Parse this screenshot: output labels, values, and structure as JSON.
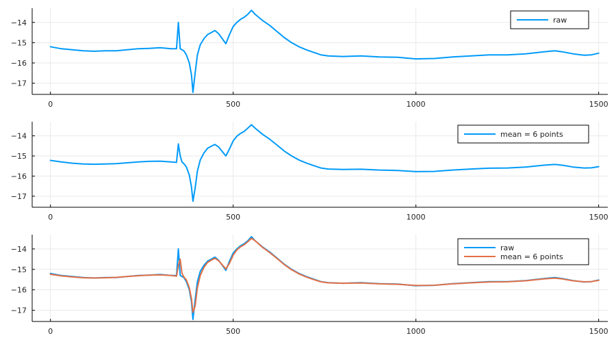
{
  "chart_data": [
    {
      "type": "line",
      "xlim": [
        -50,
        1525
      ],
      "ylim": [
        -17.55,
        -13.3
      ],
      "x_ticks": [
        0,
        500,
        1000,
        1500
      ],
      "y_ticks": [
        -17,
        -16,
        -15,
        -14
      ],
      "x_tick_labels": [
        "0",
        "500",
        "1000",
        "1500"
      ],
      "y_tick_labels": [
        "-17",
        "-16",
        "-15",
        "-14"
      ],
      "grid": true,
      "legend_position": "top-right",
      "series": [
        {
          "name": "raw",
          "color": "#009af9",
          "line_width": 2,
          "x": [
            0,
            30,
            60,
            90,
            120,
            150,
            180,
            210,
            240,
            270,
            300,
            330,
            345,
            350,
            355,
            360,
            365,
            372,
            380,
            386,
            390,
            396,
            402,
            410,
            420,
            430,
            440,
            450,
            460,
            470,
            480,
            490,
            500,
            510,
            520,
            530,
            540,
            550,
            560,
            580,
            600,
            620,
            640,
            660,
            680,
            700,
            720,
            740,
            760,
            800,
            850,
            900,
            950,
            1000,
            1050,
            1100,
            1150,
            1200,
            1250,
            1300,
            1350,
            1380,
            1400,
            1430,
            1460,
            1480,
            1500
          ],
          "y": [
            -15.2,
            -15.3,
            -15.35,
            -15.4,
            -15.42,
            -15.4,
            -15.4,
            -15.35,
            -15.3,
            -15.28,
            -15.25,
            -15.3,
            -15.3,
            -14.0,
            -15.3,
            -15.35,
            -15.4,
            -15.6,
            -16.0,
            -16.6,
            -17.45,
            -16.5,
            -15.6,
            -15.1,
            -14.8,
            -14.6,
            -14.5,
            -14.4,
            -14.55,
            -14.8,
            -15.05,
            -14.6,
            -14.2,
            -14.0,
            -13.85,
            -13.75,
            -13.6,
            -13.4,
            -13.6,
            -13.9,
            -14.15,
            -14.45,
            -14.75,
            -15.0,
            -15.2,
            -15.35,
            -15.48,
            -15.6,
            -15.65,
            -15.68,
            -15.65,
            -15.7,
            -15.72,
            -15.8,
            -15.78,
            -15.7,
            -15.65,
            -15.6,
            -15.6,
            -15.55,
            -15.45,
            -15.4,
            -15.45,
            -15.55,
            -15.62,
            -15.6,
            -15.52
          ]
        }
      ]
    },
    {
      "type": "line",
      "xlim": [
        -50,
        1525
      ],
      "ylim": [
        -17.55,
        -13.3
      ],
      "x_ticks": [
        0,
        500,
        1000,
        1500
      ],
      "y_ticks": [
        -17,
        -16,
        -15,
        -14
      ],
      "x_tick_labels": [
        "0",
        "500",
        "1000",
        "1500"
      ],
      "y_tick_labels": [
        "-17",
        "-16",
        "-15",
        "-14"
      ],
      "grid": true,
      "legend_position": "top-right",
      "series": [
        {
          "name": "mean = 6 points",
          "color": "#009af9",
          "line_width": 2,
          "x": [
            0,
            30,
            60,
            90,
            120,
            150,
            180,
            210,
            240,
            270,
            300,
            330,
            345,
            350,
            355,
            360,
            365,
            372,
            380,
            386,
            390,
            396,
            402,
            410,
            420,
            430,
            440,
            450,
            460,
            470,
            480,
            490,
            500,
            510,
            520,
            530,
            540,
            550,
            560,
            580,
            600,
            620,
            640,
            660,
            680,
            700,
            720,
            740,
            760,
            800,
            850,
            900,
            950,
            1000,
            1050,
            1100,
            1150,
            1200,
            1250,
            1300,
            1350,
            1380,
            1400,
            1430,
            1460,
            1480,
            1500
          ],
          "y": [
            -15.22,
            -15.3,
            -15.36,
            -15.4,
            -15.41,
            -15.4,
            -15.38,
            -15.34,
            -15.3,
            -15.27,
            -15.26,
            -15.3,
            -15.32,
            -14.4,
            -15.0,
            -15.3,
            -15.38,
            -15.55,
            -15.95,
            -16.55,
            -17.25,
            -16.6,
            -15.75,
            -15.2,
            -14.85,
            -14.62,
            -14.52,
            -14.43,
            -14.55,
            -14.78,
            -15.0,
            -14.65,
            -14.25,
            -14.02,
            -13.88,
            -13.78,
            -13.62,
            -13.45,
            -13.62,
            -13.92,
            -14.17,
            -14.46,
            -14.76,
            -15.0,
            -15.2,
            -15.35,
            -15.48,
            -15.6,
            -15.65,
            -15.67,
            -15.66,
            -15.7,
            -15.72,
            -15.78,
            -15.77,
            -15.7,
            -15.65,
            -15.61,
            -15.6,
            -15.55,
            -15.46,
            -15.42,
            -15.46,
            -15.55,
            -15.6,
            -15.59,
            -15.53
          ]
        }
      ]
    },
    {
      "type": "line",
      "xlim": [
        -50,
        1525
      ],
      "ylim": [
        -17.55,
        -13.3
      ],
      "x_ticks": [
        0,
        500,
        1000,
        1500
      ],
      "y_ticks": [
        -17,
        -16,
        -15,
        -14
      ],
      "x_tick_labels": [
        "0",
        "500",
        "1000",
        "1500"
      ],
      "y_tick_labels": [
        "-17",
        "-16",
        "-15",
        "-14"
      ],
      "grid": true,
      "legend_position": "top-right",
      "series": [
        {
          "name": "raw",
          "color": "#009af9",
          "line_width": 2,
          "x": [
            0,
            30,
            60,
            90,
            120,
            150,
            180,
            210,
            240,
            270,
            300,
            330,
            345,
            350,
            355,
            360,
            365,
            372,
            380,
            386,
            390,
            396,
            402,
            410,
            420,
            430,
            440,
            450,
            460,
            470,
            480,
            490,
            500,
            510,
            520,
            530,
            540,
            550,
            560,
            580,
            600,
            620,
            640,
            660,
            680,
            700,
            720,
            740,
            760,
            800,
            850,
            900,
            950,
            1000,
            1050,
            1100,
            1150,
            1200,
            1250,
            1300,
            1350,
            1380,
            1400,
            1430,
            1460,
            1480,
            1500
          ],
          "y": [
            -15.2,
            -15.3,
            -15.35,
            -15.4,
            -15.42,
            -15.4,
            -15.4,
            -15.35,
            -15.3,
            -15.28,
            -15.25,
            -15.3,
            -15.3,
            -14.0,
            -15.3,
            -15.35,
            -15.4,
            -15.6,
            -16.0,
            -16.6,
            -17.45,
            -16.5,
            -15.6,
            -15.1,
            -14.8,
            -14.6,
            -14.5,
            -14.4,
            -14.55,
            -14.8,
            -15.05,
            -14.6,
            -14.2,
            -14.0,
            -13.85,
            -13.75,
            -13.6,
            -13.4,
            -13.6,
            -13.9,
            -14.15,
            -14.45,
            -14.75,
            -15.0,
            -15.2,
            -15.35,
            -15.48,
            -15.6,
            -15.65,
            -15.68,
            -15.65,
            -15.7,
            -15.72,
            -15.8,
            -15.78,
            -15.7,
            -15.65,
            -15.6,
            -15.6,
            -15.55,
            -15.45,
            -15.4,
            -15.45,
            -15.55,
            -15.62,
            -15.6,
            -15.52
          ]
        },
        {
          "name": "mean = 6 points",
          "color": "#e26f46",
          "line_width": 2,
          "x": [
            0,
            30,
            60,
            90,
            120,
            150,
            180,
            210,
            240,
            270,
            300,
            330,
            345,
            350,
            355,
            360,
            365,
            372,
            380,
            386,
            390,
            396,
            402,
            410,
            420,
            430,
            440,
            450,
            460,
            470,
            480,
            490,
            500,
            510,
            520,
            530,
            540,
            550,
            560,
            580,
            600,
            620,
            640,
            660,
            680,
            700,
            720,
            740,
            760,
            800,
            850,
            900,
            950,
            1000,
            1050,
            1100,
            1150,
            1200,
            1250,
            1300,
            1350,
            1380,
            1400,
            1430,
            1460,
            1480,
            1500
          ],
          "y": [
            -15.24,
            -15.32,
            -15.37,
            -15.41,
            -15.42,
            -15.41,
            -15.39,
            -15.35,
            -15.31,
            -15.28,
            -15.27,
            -15.3,
            -15.33,
            -14.8,
            -14.5,
            -15.2,
            -15.37,
            -15.52,
            -15.9,
            -16.45,
            -17.1,
            -16.8,
            -15.9,
            -15.3,
            -14.9,
            -14.66,
            -14.55,
            -14.46,
            -14.57,
            -14.78,
            -14.98,
            -14.7,
            -14.3,
            -14.05,
            -13.9,
            -13.8,
            -13.65,
            -13.48,
            -13.6,
            -13.92,
            -14.18,
            -14.47,
            -14.77,
            -15.02,
            -15.22,
            -15.37,
            -15.5,
            -15.61,
            -15.66,
            -15.68,
            -15.67,
            -15.71,
            -15.73,
            -15.79,
            -15.78,
            -15.71,
            -15.66,
            -15.62,
            -15.61,
            -15.56,
            -15.47,
            -15.43,
            -15.47,
            -15.56,
            -15.61,
            -15.6,
            -15.54
          ]
        }
      ]
    }
  ]
}
